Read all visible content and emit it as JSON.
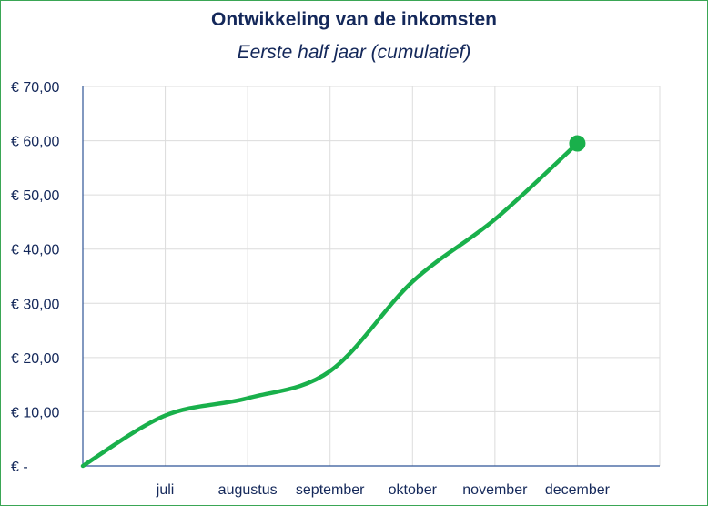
{
  "chart_data": {
    "type": "line",
    "title": "Ontwikkeling van de inkomsten",
    "subtitle": "Eerste half jaar (cumulatief)",
    "x": [
      "",
      "juli",
      "augustus",
      "september",
      "oktober",
      "november",
      "december"
    ],
    "y_tick_labels": [
      "€ -",
      "€ 10,00",
      "€ 20,00",
      "€ 30,00",
      "€ 40,00",
      "€ 50,00",
      "€ 60,00",
      "€ 70,00"
    ],
    "ylim": [
      0,
      70
    ],
    "y_tick_step": 10,
    "grid": true,
    "series": [
      {
        "values": [
          0,
          9.3,
          12.5,
          17.5,
          34,
          45.5,
          59.5
        ],
        "color": "#19b04b"
      }
    ],
    "highlight_last_point": true
  }
}
